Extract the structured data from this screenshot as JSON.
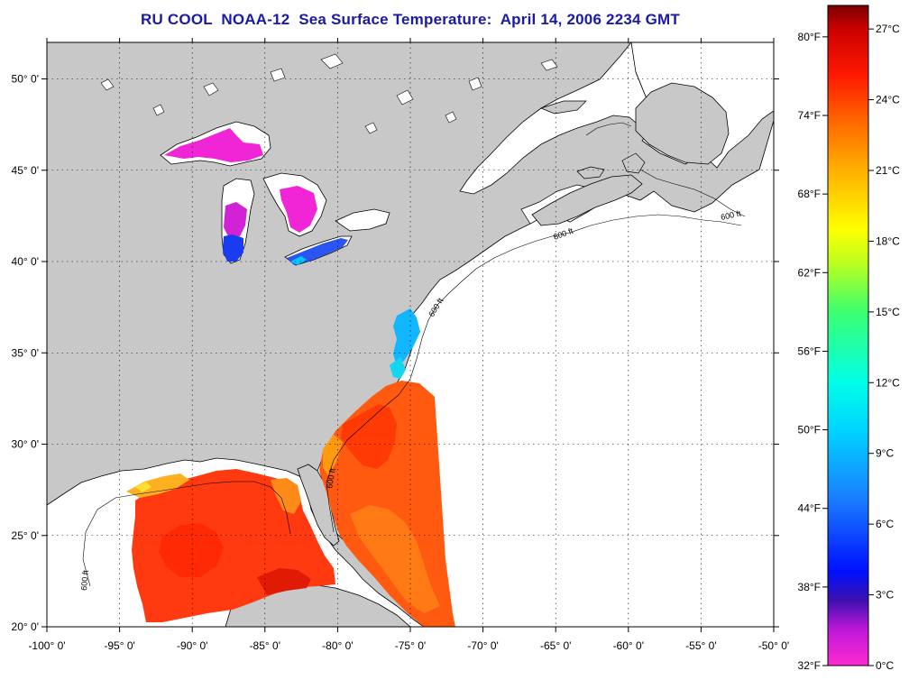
{
  "title": "RU COOL  NOAA-12  Sea Surface Temperature:  April 14, 2006 2234 GMT",
  "map": {
    "lon_ticks": [
      {
        "value": -100,
        "label": "-100° 0'"
      },
      {
        "value": -95,
        "label": "-95° 0'"
      },
      {
        "value": -90,
        "label": "-90° 0'"
      },
      {
        "value": -85,
        "label": "-85° 0'"
      },
      {
        "value": -80,
        "label": "-80° 0'"
      },
      {
        "value": -75,
        "label": "-75° 0'"
      },
      {
        "value": -70,
        "label": "-70° 0'"
      },
      {
        "value": -65,
        "label": "-65° 0'"
      },
      {
        "value": -60,
        "label": "-60° 0'"
      },
      {
        "value": -55,
        "label": "-55° 0'"
      },
      {
        "value": -50,
        "label": "-50° 0'"
      }
    ],
    "lat_ticks": [
      {
        "value": 20,
        "label": "20° 0'"
      },
      {
        "value": 25,
        "label": "25° 0'"
      },
      {
        "value": 30,
        "label": "30° 0'"
      },
      {
        "value": 35,
        "label": "35° 0'"
      },
      {
        "value": 40,
        "label": "40° 0'"
      },
      {
        "value": 45,
        "label": "45° 0'"
      },
      {
        "value": 50,
        "label": "50° 0'"
      }
    ],
    "isobath_labels": [
      "600 ft",
      "600 ft",
      "600 ft",
      "600 ft",
      "600 ft"
    ],
    "colors": {
      "land": "#c8c8c8",
      "ocean": "#ffffff",
      "coast": "#000000"
    }
  },
  "colorbar": {
    "fahrenheit": [
      {
        "value": 32,
        "label": "32°F"
      },
      {
        "value": 38,
        "label": "38°F"
      },
      {
        "value": 44,
        "label": "44°F"
      },
      {
        "value": 50,
        "label": "50°F"
      },
      {
        "value": 56,
        "label": "56°F"
      },
      {
        "value": 62,
        "label": "62°F"
      },
      {
        "value": 68,
        "label": "68°F"
      },
      {
        "value": 74,
        "label": "74°F"
      },
      {
        "value": 80,
        "label": "80°F"
      }
    ],
    "celsius": [
      {
        "value": 0,
        "label": "0°C"
      },
      {
        "value": 3,
        "label": "3°C"
      },
      {
        "value": 6,
        "label": "6°C"
      },
      {
        "value": 9,
        "label": "9°C"
      },
      {
        "value": 12,
        "label": "12°C"
      },
      {
        "value": 15,
        "label": "15°C"
      },
      {
        "value": 18,
        "label": "18°C"
      },
      {
        "value": 21,
        "label": "21°C"
      },
      {
        "value": 24,
        "label": "24°C"
      },
      {
        "value": 27,
        "label": "27°C"
      }
    ],
    "stops": [
      {
        "c": 0,
        "color": "#ff2ad2"
      },
      {
        "c": 1.5,
        "color": "#c018d8"
      },
      {
        "c": 2.8,
        "color": "#3a10b0"
      },
      {
        "c": 4,
        "color": "#0010ff"
      },
      {
        "c": 7,
        "color": "#1a7bff"
      },
      {
        "c": 10,
        "color": "#00d4ff"
      },
      {
        "c": 12,
        "color": "#00ffe8"
      },
      {
        "c": 15,
        "color": "#3cff70"
      },
      {
        "c": 17,
        "color": "#b8ff20"
      },
      {
        "c": 18.5,
        "color": "#ffff00"
      },
      {
        "c": 21,
        "color": "#ffb000"
      },
      {
        "c": 23,
        "color": "#ff6a00"
      },
      {
        "c": 25,
        "color": "#ff1a00"
      },
      {
        "c": 27,
        "color": "#cc0000"
      },
      {
        "c": 28,
        "color": "#7a0000"
      }
    ]
  },
  "chart_data": {
    "type": "heatmap",
    "title": "RU COOL  NOAA-12  Sea Surface Temperature:  April 14, 2006 2234 GMT",
    "xlabel": "",
    "ylabel": "",
    "xlim": [
      -100,
      -50
    ],
    "ylim": [
      20,
      52
    ],
    "colorbar_range_c": [
      0,
      28
    ],
    "colorbar_range_f": [
      32,
      82
    ],
    "grid": true
  }
}
